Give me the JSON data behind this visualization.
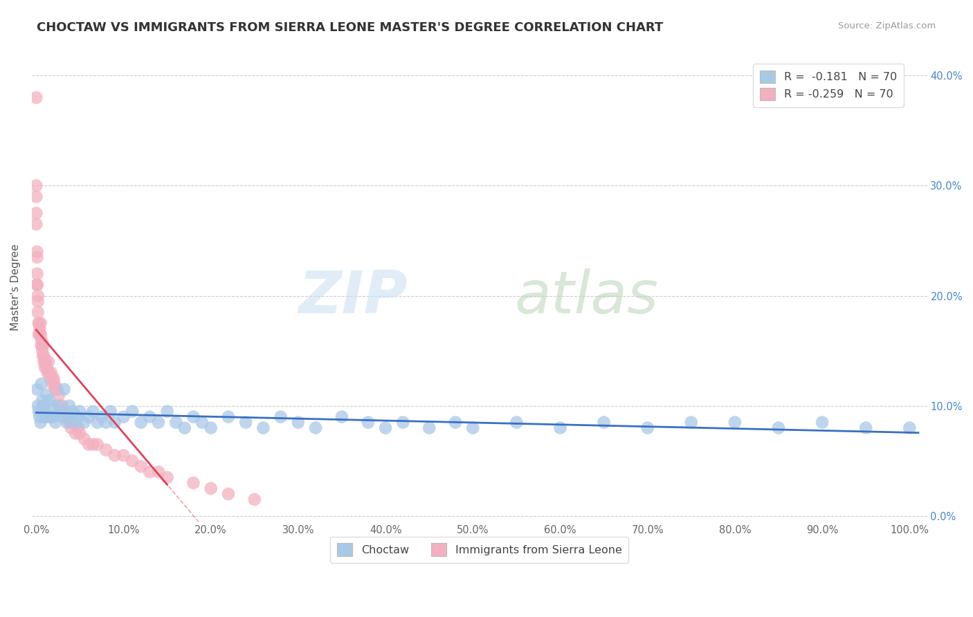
{
  "title": "CHOCTAW VS IMMIGRANTS FROM SIERRA LEONE MASTER'S DEGREE CORRELATION CHART",
  "source_text": "Source: ZipAtlas.com",
  "ylabel": "Master's Degree",
  "background_color": "#ffffff",
  "grid_color": "#cccccc",
  "title_color": "#333333",
  "r1": -0.181,
  "r2": -0.259,
  "n1": 70,
  "n2": 70,
  "choctaw_color": "#a8c8e8",
  "sierra_leone_color": "#f4b0c0",
  "choctaw_line_color": "#3a6fc4",
  "sierra_leone_line_color": "#e0405a",
  "choctaw_x": [
    0.001,
    0.002,
    0.003,
    0.004,
    0.005,
    0.006,
    0.007,
    0.008,
    0.009,
    0.01,
    0.012,
    0.013,
    0.015,
    0.016,
    0.018,
    0.02,
    0.022,
    0.025,
    0.028,
    0.03,
    0.032,
    0.035,
    0.038,
    0.04,
    0.042,
    0.045,
    0.048,
    0.05,
    0.055,
    0.06,
    0.065,
    0.07,
    0.075,
    0.08,
    0.085,
    0.09,
    0.1,
    0.11,
    0.12,
    0.13,
    0.14,
    0.15,
    0.16,
    0.17,
    0.18,
    0.19,
    0.2,
    0.22,
    0.24,
    0.26,
    0.28,
    0.3,
    0.32,
    0.35,
    0.38,
    0.4,
    0.42,
    0.45,
    0.48,
    0.5,
    0.55,
    0.6,
    0.65,
    0.7,
    0.75,
    0.8,
    0.85,
    0.9,
    0.95,
    1.0
  ],
  "choctaw_y": [
    0.115,
    0.1,
    0.095,
    0.09,
    0.085,
    0.12,
    0.105,
    0.1,
    0.09,
    0.095,
    0.11,
    0.09,
    0.105,
    0.09,
    0.1,
    0.09,
    0.085,
    0.1,
    0.095,
    0.09,
    0.115,
    0.085,
    0.1,
    0.09,
    0.095,
    0.085,
    0.09,
    0.095,
    0.085,
    0.09,
    0.095,
    0.085,
    0.09,
    0.085,
    0.095,
    0.085,
    0.09,
    0.095,
    0.085,
    0.09,
    0.085,
    0.095,
    0.085,
    0.08,
    0.09,
    0.085,
    0.08,
    0.09,
    0.085,
    0.08,
    0.09,
    0.085,
    0.08,
    0.09,
    0.085,
    0.08,
    0.085,
    0.08,
    0.085,
    0.08,
    0.085,
    0.08,
    0.085,
    0.08,
    0.085,
    0.085,
    0.08,
    0.085,
    0.08,
    0.08
  ],
  "sierra_leone_x": [
    0.0,
    0.0,
    0.0,
    0.0,
    0.0,
    0.001,
    0.001,
    0.001,
    0.001,
    0.001,
    0.002,
    0.002,
    0.002,
    0.003,
    0.003,
    0.003,
    0.004,
    0.004,
    0.005,
    0.005,
    0.006,
    0.006,
    0.007,
    0.007,
    0.008,
    0.008,
    0.009,
    0.009,
    0.01,
    0.01,
    0.011,
    0.012,
    0.013,
    0.014,
    0.015,
    0.016,
    0.017,
    0.018,
    0.019,
    0.02,
    0.021,
    0.022,
    0.024,
    0.026,
    0.028,
    0.03,
    0.032,
    0.035,
    0.038,
    0.04,
    0.042,
    0.045,
    0.048,
    0.05,
    0.055,
    0.06,
    0.065,
    0.07,
    0.08,
    0.09,
    0.1,
    0.11,
    0.12,
    0.13,
    0.14,
    0.15,
    0.18,
    0.2,
    0.22,
    0.25
  ],
  "sierra_leone_y": [
    0.38,
    0.3,
    0.29,
    0.275,
    0.265,
    0.24,
    0.235,
    0.22,
    0.21,
    0.21,
    0.2,
    0.195,
    0.185,
    0.175,
    0.175,
    0.165,
    0.17,
    0.165,
    0.175,
    0.165,
    0.16,
    0.155,
    0.155,
    0.15,
    0.145,
    0.155,
    0.145,
    0.14,
    0.14,
    0.135,
    0.14,
    0.135,
    0.13,
    0.14,
    0.13,
    0.125,
    0.13,
    0.125,
    0.12,
    0.125,
    0.12,
    0.115,
    0.115,
    0.11,
    0.1,
    0.1,
    0.095,
    0.09,
    0.085,
    0.08,
    0.085,
    0.075,
    0.08,
    0.075,
    0.07,
    0.065,
    0.065,
    0.065,
    0.06,
    0.055,
    0.055,
    0.05,
    0.045,
    0.04,
    0.04,
    0.035,
    0.03,
    0.025,
    0.02,
    0.015
  ],
  "xlim": [
    -0.005,
    1.02
  ],
  "ylim": [
    -0.005,
    0.42
  ],
  "xticks": [
    0.0,
    0.1,
    0.2,
    0.3,
    0.4,
    0.5,
    0.6,
    0.7,
    0.8,
    0.9,
    1.0
  ],
  "yticks": [
    0.0,
    0.1,
    0.2,
    0.3,
    0.4
  ],
  "xtick_labels": [
    "0.0%",
    "10.0%",
    "20.0%",
    "30.0%",
    "40.0%",
    "50.0%",
    "60.0%",
    "70.0%",
    "80.0%",
    "90.0%",
    "100.0%"
  ],
  "ytick_labels_left": [
    "",
    "",
    "",
    "",
    ""
  ],
  "ytick_labels_right": [
    "0.0%",
    "10.0%",
    "20.0%",
    "30.0%",
    "40.0%"
  ]
}
